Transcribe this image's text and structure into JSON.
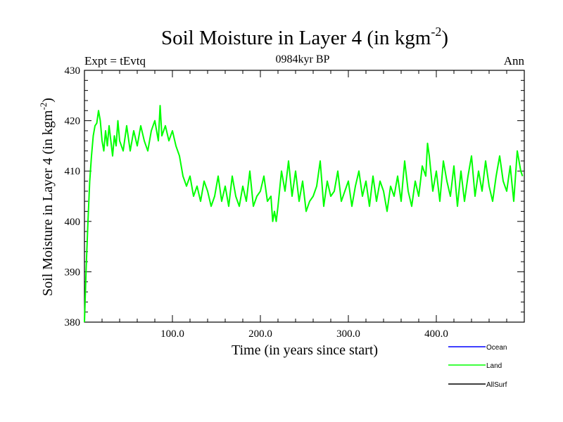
{
  "chart_data": {
    "type": "line",
    "title": "Soil Moisture in Layer 4 (in kgm",
    "title_sup": "-2",
    "title_close": ")",
    "subtitle_left": "Expt = tEvtq",
    "subtitle_center": "0984kyr BP",
    "subtitle_right": "Ann",
    "xlabel": "Time (in years since start)",
    "ylabel": "Soil Moisture in Layer 4 (in kgm",
    "ylabel_sup": "-2",
    "ylabel_close": ")",
    "xlim": [
      0,
      500
    ],
    "ylim": [
      380,
      430
    ],
    "x_ticks": [
      100,
      200,
      300,
      400
    ],
    "x_tick_labels": [
      "100.0",
      "200.0",
      "300.0",
      "400.0"
    ],
    "y_ticks": [
      380,
      390,
      400,
      410,
      420,
      430
    ],
    "y_tick_labels": [
      "380",
      "390",
      "400",
      "410",
      "420",
      "430"
    ],
    "legend": [
      {
        "name": "Ocean",
        "color": "#0000ff"
      },
      {
        "name": "Land",
        "color": "#00ff00"
      },
      {
        "name": "AllSurf",
        "color": "#000000"
      }
    ],
    "series": [
      {
        "name": "Land",
        "color": "#00ff00",
        "x": [
          0,
          2,
          4,
          6,
          8,
          10,
          12,
          14,
          16,
          18,
          20,
          22,
          24,
          26,
          28,
          30,
          32,
          34,
          36,
          38,
          40,
          44,
          48,
          52,
          56,
          60,
          64,
          68,
          72,
          76,
          80,
          84,
          86,
          88,
          92,
          96,
          100,
          104,
          108,
          112,
          116,
          120,
          124,
          128,
          132,
          136,
          140,
          144,
          148,
          152,
          156,
          160,
          164,
          168,
          172,
          176,
          180,
          184,
          188,
          192,
          196,
          200,
          204,
          208,
          212,
          214,
          216,
          218,
          220,
          224,
          228,
          232,
          236,
          240,
          244,
          248,
          252,
          256,
          260,
          264,
          268,
          272,
          276,
          280,
          284,
          288,
          292,
          296,
          300,
          304,
          308,
          312,
          316,
          320,
          324,
          328,
          332,
          336,
          340,
          344,
          348,
          352,
          356,
          360,
          364,
          368,
          372,
          376,
          380,
          384,
          388,
          390,
          392,
          396,
          400,
          404,
          408,
          412,
          416,
          420,
          424,
          428,
          432,
          436,
          440,
          444,
          448,
          452,
          456,
          460,
          464,
          468,
          472,
          476,
          480,
          484,
          488,
          490,
          492,
          494,
          496,
          498
        ],
        "values": [
          380,
          391,
          400,
          408,
          413,
          417,
          419,
          419.5,
          422,
          420,
          416,
          414,
          418,
          415,
          419,
          416,
          413,
          417,
          415,
          420,
          416,
          414,
          419,
          414,
          418,
          415,
          419,
          416,
          414,
          418,
          420,
          416,
          423,
          417,
          419,
          416,
          418,
          415,
          413,
          409,
          407,
          409,
          405,
          407,
          404,
          408,
          406,
          403,
          405,
          409,
          404,
          407,
          403,
          409,
          405,
          403,
          407,
          404,
          410,
          403,
          405,
          406,
          409,
          404,
          405,
          400,
          402,
          400,
          403,
          410,
          406,
          412,
          405,
          410,
          404,
          408,
          402,
          404,
          405,
          407,
          412,
          403,
          408,
          405,
          406,
          410,
          404,
          406,
          408,
          403,
          407,
          410,
          405,
          408,
          403,
          409,
          404,
          408,
          406,
          402,
          407,
          405,
          409,
          404,
          412,
          406,
          403,
          408,
          405,
          411,
          409,
          415.5,
          413,
          406,
          410,
          404,
          412,
          408,
          405,
          411,
          403,
          410,
          404,
          409,
          413,
          405,
          410,
          406,
          412,
          407,
          404,
          409,
          413,
          408,
          406,
          411,
          404,
          409,
          414,
          412,
          410,
          409
        ]
      }
    ]
  }
}
